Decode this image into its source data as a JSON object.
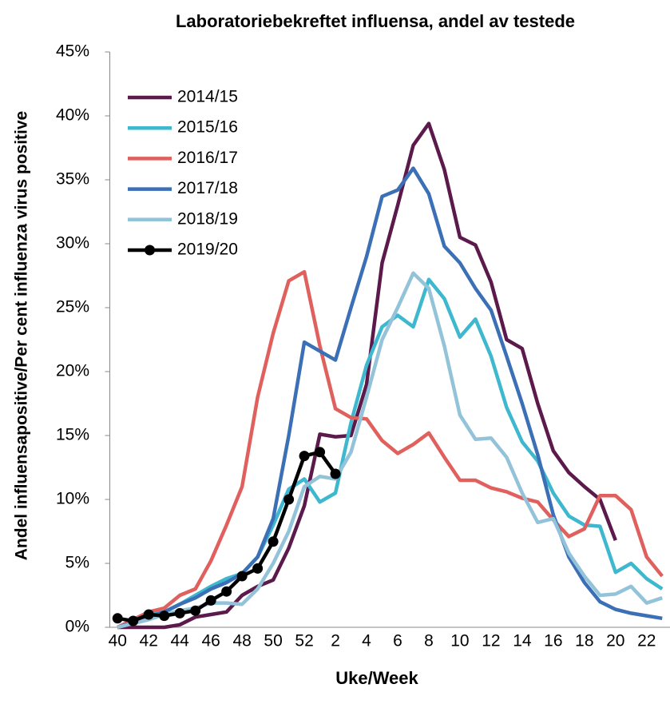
{
  "chart_data": {
    "type": "line",
    "title": "Laboratoriebekreftet influensa, andel av testede",
    "x_label": "Uke/Week",
    "y_label": "Andel influensapositive/Per cent influenza virus positive",
    "categories": [
      "40",
      null,
      "42",
      null,
      "44",
      null,
      "46",
      null,
      "48",
      null,
      "50",
      null,
      "52",
      null,
      "2",
      null,
      "4",
      null,
      "6",
      null,
      "8",
      null,
      "10",
      null,
      "12",
      null,
      "14",
      null,
      "16",
      null,
      "18",
      null,
      "20",
      null,
      "22",
      null
    ],
    "ylim": [
      0,
      45
    ],
    "yticks": [
      {
        "value": 0,
        "label": "0%"
      },
      {
        "value": 5,
        "label": "5%"
      },
      {
        "value": 10,
        "label": "10%"
      },
      {
        "value": 15,
        "label": "15%"
      },
      {
        "value": 20,
        "label": "20%"
      },
      {
        "value": 25,
        "label": "25%"
      },
      {
        "value": 30,
        "label": "30%"
      },
      {
        "value": 35,
        "label": "35%"
      },
      {
        "value": 40,
        "label": "40%"
      },
      {
        "value": 45,
        "label": "45%"
      }
    ],
    "legend": "top-left",
    "series": [
      {
        "name": "2014/15",
        "color": "#5b1a4b",
        "values": [
          0,
          0,
          0,
          0,
          0.2,
          0.8,
          1.0,
          1.2,
          2.5,
          3.2,
          3.7,
          6.2,
          9.5,
          15.1,
          14.9,
          15.0,
          19,
          28.5,
          33,
          37.7,
          39.4,
          35.8,
          30.5,
          29.9,
          27,
          22.5,
          21.8,
          17.5,
          13.8,
          12.1,
          11,
          10,
          6.8,
          null,
          null,
          null
        ]
      },
      {
        "name": "2015/16",
        "color": "#3db8cf",
        "values": [
          0,
          0.5,
          1.0,
          1.2,
          1.8,
          2.5,
          3.2,
          3.8,
          4.2,
          5.5,
          8,
          10.8,
          11.6,
          9.8,
          10.5,
          16,
          20.5,
          23.5,
          24.4,
          23.5,
          27.2,
          25.7,
          22.7,
          24.1,
          21.2,
          17.2,
          14.5,
          13,
          10.5,
          8.7,
          8,
          7.9,
          4.3,
          5,
          3.8,
          3
        ]
      },
      {
        "name": "2016/17",
        "color": "#e0605e",
        "values": [
          0,
          0.6,
          1.2,
          1.5,
          2.5,
          3,
          5.2,
          8,
          11,
          18,
          23,
          27.1,
          27.8,
          22,
          17.1,
          16.4,
          16.3,
          14.6,
          13.6,
          14.3,
          15.2,
          13.3,
          11.5,
          11.5,
          10.9,
          10.6,
          10.1,
          9.8,
          8.4,
          7.1,
          7.7,
          10.3,
          10.3,
          9.2,
          5.5,
          4
        ]
      },
      {
        "name": "2017/18",
        "color": "#3b6fb6",
        "values": [
          0,
          0.4,
          0.8,
          1.2,
          1.8,
          2.3,
          3,
          3.5,
          4.2,
          5.5,
          8.5,
          15,
          22.3,
          21.6,
          20.9,
          25,
          29,
          33.7,
          34.2,
          35.9,
          33.9,
          29.8,
          28.5,
          26.5,
          24.8,
          21.2,
          17.5,
          13.5,
          8.8,
          5.5,
          3.5,
          2,
          1.4,
          1.1,
          0.9,
          0.7
        ]
      },
      {
        "name": "2018/19",
        "color": "#93c3d9",
        "values": [
          0,
          0.3,
          0.6,
          1.0,
          1.3,
          1.5,
          1.9,
          1.9,
          1.8,
          3,
          5,
          7.5,
          11,
          11.8,
          11.6,
          13.7,
          18,
          22.5,
          25,
          27.7,
          26.5,
          22,
          16.6,
          14.7,
          14.8,
          13.3,
          10.5,
          8.2,
          8.5,
          5.8,
          4,
          2.5,
          2.6,
          3.2,
          1.9,
          2.3
        ]
      },
      {
        "name": "2019/20",
        "color": "#000000",
        "markers": true,
        "values": [
          0.7,
          0.5,
          1.0,
          0.9,
          1.1,
          1.3,
          2.1,
          2.8,
          4.0,
          4.6,
          6.7,
          10,
          13.4,
          13.7,
          12,
          null,
          null,
          null,
          null,
          null,
          null,
          null,
          null,
          null,
          null,
          null,
          null,
          null,
          null,
          null,
          null,
          null,
          null,
          null,
          null,
          null
        ]
      }
    ]
  }
}
